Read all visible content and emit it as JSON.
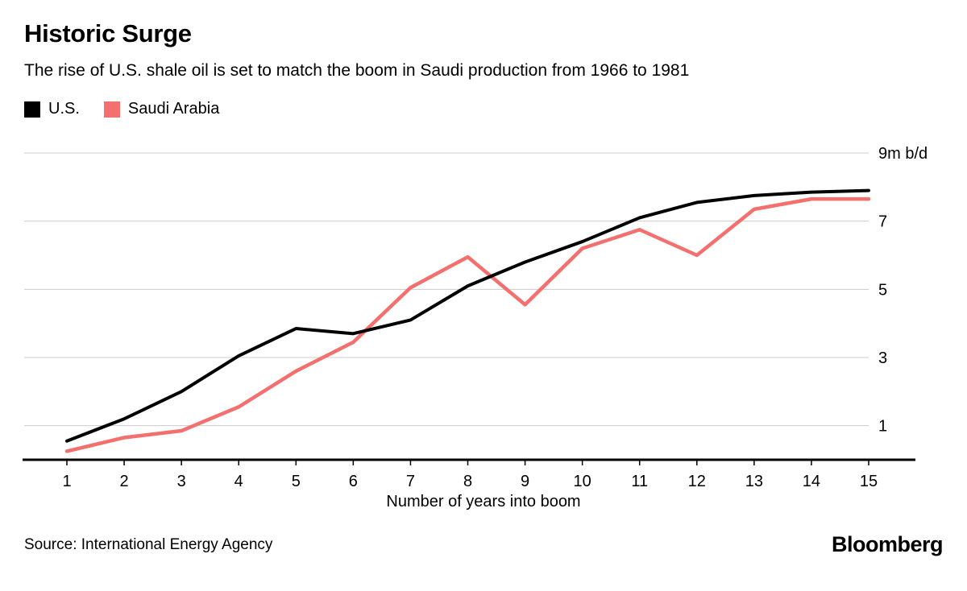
{
  "header": {
    "title": "Historic Surge",
    "subtitle": "The rise of U.S. shale oil is set to match the boom in Saudi production from 1966 to 1981"
  },
  "legend": [
    {
      "label": "U.S.",
      "color": "#000000"
    },
    {
      "label": "Saudi Arabia",
      "color": "#F4706E"
    }
  ],
  "chart_data": {
    "type": "line",
    "x": [
      1,
      2,
      3,
      4,
      5,
      6,
      7,
      8,
      9,
      10,
      11,
      12,
      13,
      14,
      15
    ],
    "series": [
      {
        "name": "U.S.",
        "color": "#000000",
        "stroke_width": 4,
        "values": [
          0.55,
          1.2,
          2.0,
          3.05,
          3.85,
          3.7,
          4.1,
          5.1,
          5.8,
          6.4,
          7.1,
          7.55,
          7.75,
          7.85,
          7.9
        ]
      },
      {
        "name": "Saudi Arabia",
        "color": "#F4706E",
        "stroke_width": 4.5,
        "values": [
          0.25,
          0.65,
          0.85,
          1.55,
          2.6,
          3.45,
          5.05,
          5.95,
          4.55,
          6.2,
          6.75,
          6.0,
          7.35,
          7.65,
          7.65
        ]
      }
    ],
    "xlabel": "Number of years into boom",
    "y_gridlines": [
      9,
      7,
      5,
      3,
      1
    ],
    "y_axis_labels": [
      "9m b/d",
      "7",
      "5",
      "3",
      "1"
    ],
    "ylim": [
      0,
      9
    ],
    "grid": "horizontal",
    "grid_color": "#cccccc",
    "legend_position": "top-left"
  },
  "footer": {
    "source": "Source: International Energy Agency",
    "brand": "Bloomberg"
  }
}
